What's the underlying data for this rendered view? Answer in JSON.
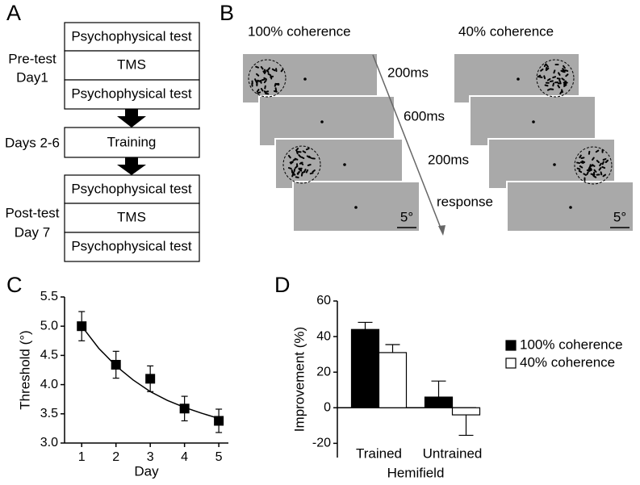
{
  "panel_labels": [
    "A",
    "B",
    "C",
    "D"
  ],
  "flow": {
    "stages": [
      {
        "labels": [
          "Pre-test",
          "Day1"
        ],
        "boxes": [
          "Psychophysical test",
          "TMS",
          "Psychophysical test"
        ]
      },
      {
        "labels": [
          "Days 2-6"
        ],
        "boxes": [
          "Training"
        ]
      },
      {
        "labels": [
          "Post-test",
          "Day 7"
        ],
        "boxes": [
          "Psychophysical test",
          "TMS",
          "Psychophysical test"
        ]
      }
    ]
  },
  "stimulus": {
    "columns": [
      "100% coherence",
      "40% coherence"
    ],
    "timings": [
      "200ms",
      "600ms",
      "200ms",
      "response"
    ],
    "scale_label": "5°"
  },
  "chart_data": [
    {
      "type": "scatter",
      "xlabel": "Day",
      "ylabel": "Threshold (°)",
      "x": [
        1,
        2,
        3,
        4,
        5
      ],
      "series": [
        {
          "color": "#000000",
          "values": [
            5.0,
            4.34,
            4.1,
            3.59,
            3.38
          ],
          "errors": [
            0.25,
            0.23,
            0.22,
            0.21,
            0.2
          ]
        }
      ],
      "fit": {
        "x": [
          1,
          1.5,
          2,
          2.5,
          3,
          3.5,
          4,
          4.5,
          5
        ],
        "values": [
          5.0,
          4.62,
          4.32,
          4.08,
          3.88,
          3.73,
          3.61,
          3.51,
          3.42
        ]
      },
      "xlim": [
        0.5,
        5.28
      ],
      "ylim": [
        3.0,
        5.5
      ],
      "xticks": [
        1,
        2,
        3,
        4,
        5
      ],
      "yticks": [
        {
          "value": 3,
          "label": "3.0"
        },
        3.5,
        {
          "value": 4,
          "label": "4.0"
        },
        4.5,
        {
          "value": 5,
          "label": "5.0"
        },
        5.5
      ]
    },
    {
      "type": "bar",
      "xlabel": "Hemifield",
      "ylabel": "Improvement (%)",
      "categories": [
        "Trained",
        "Untrained"
      ],
      "series": [
        {
          "name": "100% coherence",
          "color": "#000000",
          "values": [
            44,
            6
          ],
          "errors": [
            4,
            9
          ]
        },
        {
          "name": "40% coherence",
          "color": "#ffffff",
          "values": [
            31,
            -4
          ],
          "errors": [
            4.5,
            11.5
          ]
        }
      ],
      "ylim": [
        -28,
        60
      ],
      "yticks": [
        -20,
        0,
        20,
        40,
        60
      ],
      "legend": "right"
    }
  ]
}
